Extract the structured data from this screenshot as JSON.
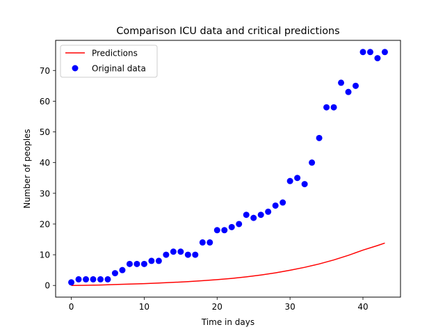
{
  "chart_data": {
    "type": "scatter",
    "title": "Comparison ICU data and critical predictions",
    "xlabel": "Time in days",
    "ylabel": "Number of peoples",
    "xlim": [
      -2.15,
      45.15
    ],
    "ylim": [
      -3.8,
      79.8
    ],
    "xticks": [
      0,
      10,
      20,
      30,
      40
    ],
    "yticks": [
      0,
      10,
      20,
      30,
      40,
      50,
      60,
      70
    ],
    "grid": false,
    "legend_position": "top-left",
    "series": [
      {
        "name": "Predictions",
        "kind": "line",
        "color": "#ff0000",
        "x": [
          0,
          2,
          4,
          6,
          8,
          10,
          12,
          14,
          16,
          18,
          20,
          22,
          24,
          26,
          28,
          30,
          32,
          34,
          36,
          38,
          40,
          42,
          43
        ],
        "y": [
          0.0,
          0.05,
          0.15,
          0.3,
          0.45,
          0.6,
          0.8,
          1.0,
          1.25,
          1.55,
          1.9,
          2.3,
          2.8,
          3.4,
          4.1,
          4.95,
          5.9,
          7.0,
          8.3,
          9.8,
          11.5,
          13.0,
          13.8
        ]
      },
      {
        "name": "Original data",
        "kind": "scatter",
        "color": "#0000ff",
        "x": [
          0,
          1,
          2,
          3,
          4,
          5,
          6,
          7,
          8,
          9,
          10,
          11,
          12,
          13,
          14,
          15,
          16,
          17,
          18,
          19,
          20,
          21,
          22,
          23,
          24,
          25,
          26,
          27,
          28,
          29,
          30,
          31,
          32,
          33,
          34,
          35,
          36,
          37,
          38,
          39,
          40,
          41,
          42,
          43
        ],
        "y": [
          1,
          2,
          2,
          2,
          2,
          2,
          4,
          5,
          7,
          7,
          7,
          8,
          8,
          10,
          11,
          11,
          10,
          10,
          14,
          14,
          18,
          18,
          19,
          20,
          23,
          22,
          23,
          24,
          26,
          27,
          34,
          35,
          33,
          40,
          48,
          58,
          58,
          66,
          63,
          65,
          76,
          76,
          74,
          76
        ]
      }
    ]
  }
}
